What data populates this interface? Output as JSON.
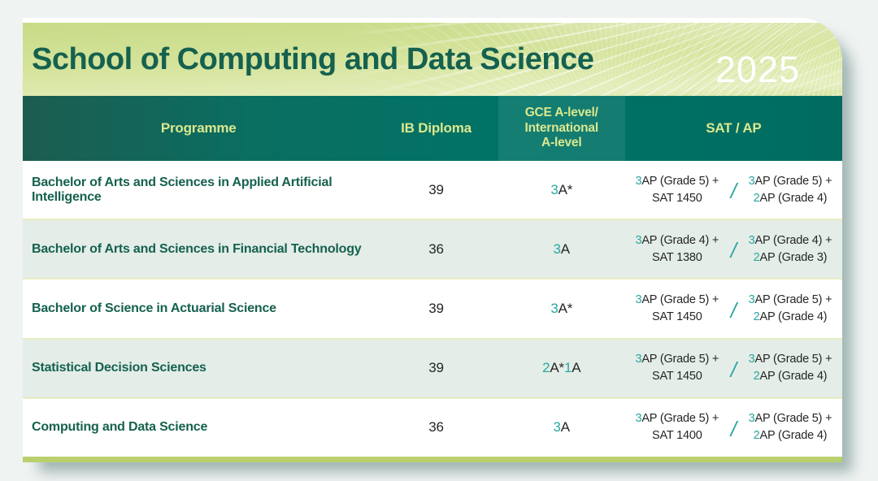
{
  "year": "2025",
  "title": "School of Computing and Data Science",
  "colors": {
    "accent_teal": "#2aa7a1",
    "title_teal": "#15614f",
    "header_bg": "#007366",
    "header_text": "#dbe88f",
    "band_green": "#d4e39a",
    "row_alt": "#e4ede7",
    "bottom_bar": "#b9d06d",
    "page_bg": "#eff3f2"
  },
  "table": {
    "headers": {
      "programme": "Programme",
      "ib": "IB Diploma",
      "gce": "GCE A-level/\nInternational\nA-level",
      "sat": "SAT / AP"
    },
    "sat_separator": "/",
    "rows": [
      {
        "programme": "Bachelor of Arts and Sciences in Applied Artificial Intelligence",
        "ib": "39",
        "gce": [
          {
            "text": "3",
            "hl": true
          },
          {
            "text": "A*",
            "hl": false
          }
        ],
        "sat_left": {
          "line1": [
            {
              "text": "3",
              "hl": true
            },
            {
              "text": "AP (Grade 5) +",
              "hl": false
            }
          ],
          "line2": [
            {
              "text": "SAT 1450",
              "hl": false
            }
          ]
        },
        "sat_right": {
          "line1": [
            {
              "text": "3",
              "hl": true
            },
            {
              "text": "AP (Grade 5) +",
              "hl": false
            }
          ],
          "line2": [
            {
              "text": "2",
              "hl": true
            },
            {
              "text": "AP (Grade 4)",
              "hl": false
            }
          ]
        }
      },
      {
        "programme": "Bachelor of Arts and Sciences in Financial Technology",
        "ib": "36",
        "gce": [
          {
            "text": "3",
            "hl": true
          },
          {
            "text": "A",
            "hl": false
          }
        ],
        "sat_left": {
          "line1": [
            {
              "text": "3",
              "hl": true
            },
            {
              "text": "AP (Grade 4) +",
              "hl": false
            }
          ],
          "line2": [
            {
              "text": "SAT 1380",
              "hl": false
            }
          ]
        },
        "sat_right": {
          "line1": [
            {
              "text": "3",
              "hl": true
            },
            {
              "text": "AP (Grade 4) +",
              "hl": false
            }
          ],
          "line2": [
            {
              "text": "2",
              "hl": true
            },
            {
              "text": "AP (Grade 3)",
              "hl": false
            }
          ]
        }
      },
      {
        "programme": "Bachelor of Science in Actuarial Science",
        "ib": "39",
        "gce": [
          {
            "text": "3",
            "hl": true
          },
          {
            "text": "A*",
            "hl": false
          }
        ],
        "sat_left": {
          "line1": [
            {
              "text": "3",
              "hl": true
            },
            {
              "text": "AP (Grade 5) +",
              "hl": false
            }
          ],
          "line2": [
            {
              "text": "SAT 1450",
              "hl": false
            }
          ]
        },
        "sat_right": {
          "line1": [
            {
              "text": "3",
              "hl": true
            },
            {
              "text": "AP (Grade 5) +",
              "hl": false
            }
          ],
          "line2": [
            {
              "text": "2",
              "hl": true
            },
            {
              "text": "AP (Grade 4)",
              "hl": false
            }
          ]
        }
      },
      {
        "programme": "Statistical Decision Sciences",
        "ib": "39",
        "gce": [
          {
            "text": "2",
            "hl": true
          },
          {
            "text": "A*",
            "hl": false
          },
          {
            "text": "1",
            "hl": true
          },
          {
            "text": "A",
            "hl": false
          }
        ],
        "sat_left": {
          "line1": [
            {
              "text": "3",
              "hl": true
            },
            {
              "text": "AP (Grade 5) +",
              "hl": false
            }
          ],
          "line2": [
            {
              "text": "SAT 1450",
              "hl": false
            }
          ]
        },
        "sat_right": {
          "line1": [
            {
              "text": "3",
              "hl": true
            },
            {
              "text": "AP (Grade 5) +",
              "hl": false
            }
          ],
          "line2": [
            {
              "text": "2",
              "hl": true
            },
            {
              "text": "AP (Grade 4)",
              "hl": false
            }
          ]
        }
      },
      {
        "programme": "Computing and Data Science",
        "ib": "36",
        "gce": [
          {
            "text": "3",
            "hl": true
          },
          {
            "text": "A",
            "hl": false
          }
        ],
        "sat_left": {
          "line1": [
            {
              "text": "3",
              "hl": true
            },
            {
              "text": "AP (Grade 5) +",
              "hl": false
            }
          ],
          "line2": [
            {
              "text": "SAT 1400",
              "hl": false
            }
          ]
        },
        "sat_right": {
          "line1": [
            {
              "text": "3",
              "hl": true
            },
            {
              "text": "AP (Grade 5) +",
              "hl": false
            }
          ],
          "line2": [
            {
              "text": "2",
              "hl": true
            },
            {
              "text": "AP (Grade 4)",
              "hl": false
            }
          ]
        }
      }
    ]
  }
}
